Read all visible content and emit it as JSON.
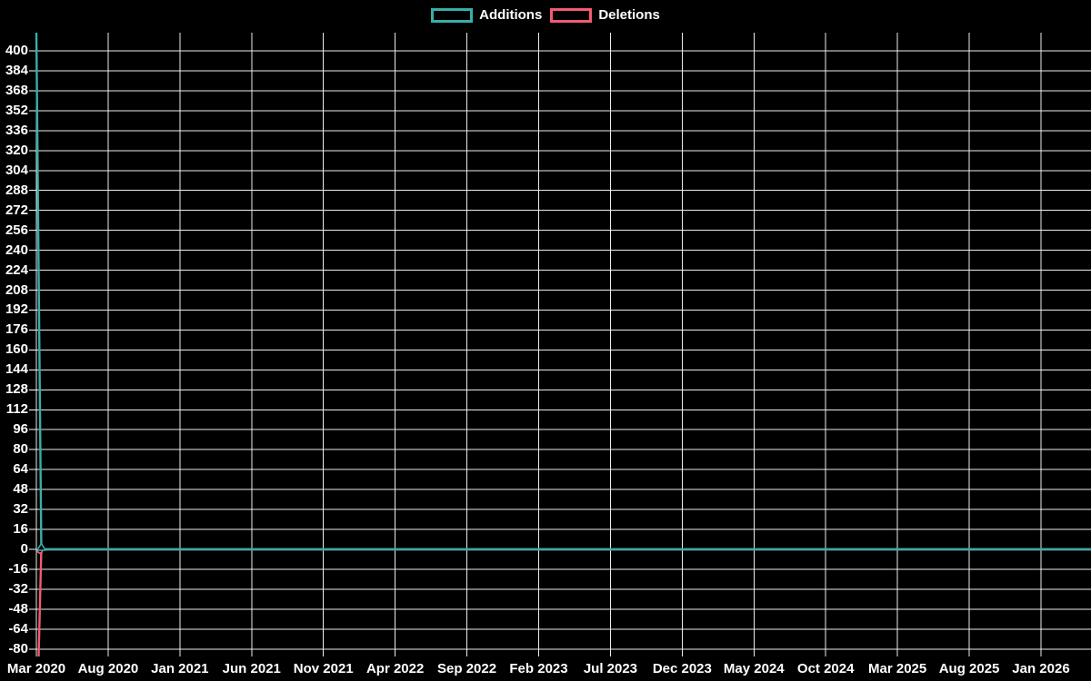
{
  "page": {
    "background": "#000000",
    "text_color": "#ffffff"
  },
  "legend": {
    "items": [
      {
        "label": "Additions",
        "color": "#37AFA9"
      },
      {
        "label": "Deletions",
        "color": "#F25B73"
      }
    ]
  },
  "chart_data": {
    "type": "line",
    "title": "",
    "legend_position": "top-center",
    "grid": true,
    "grid_color": "#ededed",
    "tick_color": "#ffffff",
    "background": "#000000",
    "x_tick_labels": [
      "Mar 2020",
      "Aug 2020",
      "Jan 2021",
      "Jun 2021",
      "Nov 2021",
      "Apr 2022",
      "Sep 2022",
      "Feb 2023",
      "Jul 2023",
      "Dec 2023",
      "May 2024",
      "Oct 2024",
      "Mar 2025",
      "Aug 2025",
      "Jan 2026"
    ],
    "x_tick_interval": "5 months",
    "y_ticks": [
      400,
      384,
      368,
      352,
      336,
      320,
      304,
      288,
      272,
      256,
      240,
      224,
      208,
      192,
      176,
      160,
      144,
      128,
      112,
      96,
      80,
      64,
      48,
      32,
      16,
      0,
      -16,
      -32,
      -48,
      -64,
      -80
    ],
    "y_tick_step": 16,
    "y_axis_labeled_range": [
      -80,
      400
    ],
    "series": [
      {
        "name": "Additions",
        "color": "#37AFA9",
        "marker": "triangle-up",
        "points": [
          {
            "week": 0,
            "value": 415
          },
          {
            "week": 1.5,
            "value": 0
          },
          {
            "week": 319,
            "value": 0
          }
        ],
        "description": "single spike at first week of Mar 2020 clipped at plot top (above 400), zero for all later weeks through Jan 2026"
      },
      {
        "name": "Deletions",
        "color": "#F25B73",
        "marker": "circle",
        "points": [
          {
            "week": 0,
            "value": -86
          },
          {
            "week": 1.5,
            "value": 0
          },
          {
            "week": 319,
            "value": 0
          }
        ],
        "description": "single dip at first week of Mar 2020 clipped at plot bottom (below -80), zero for all later weeks through Jan 2026"
      }
    ]
  }
}
